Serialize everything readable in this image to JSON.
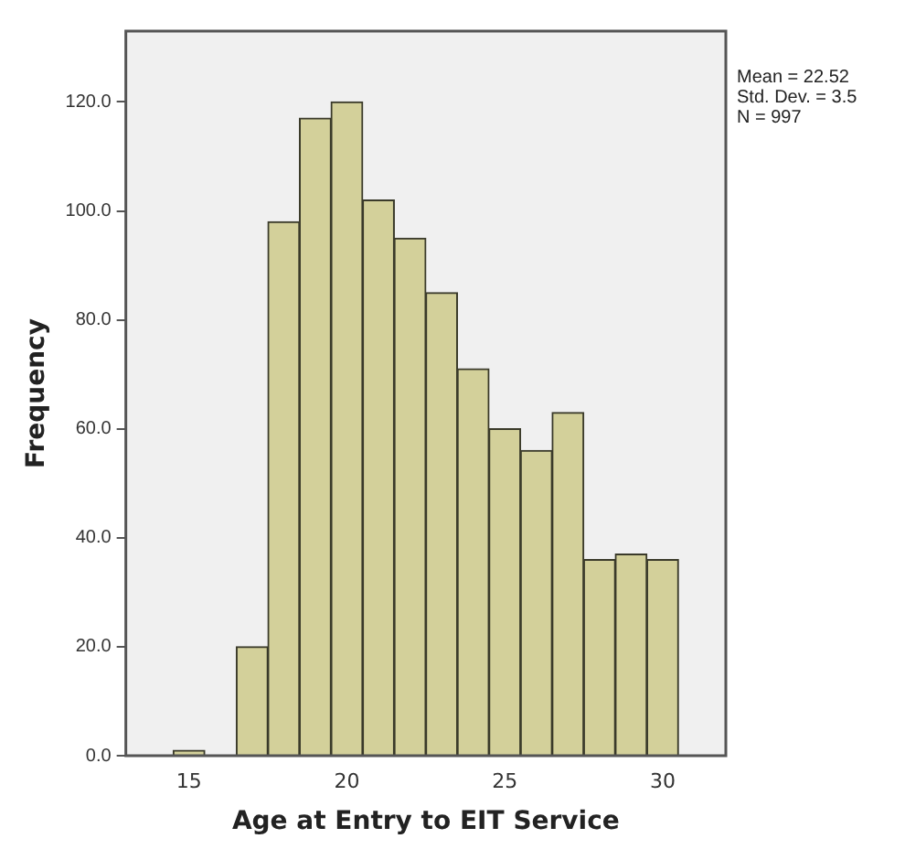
{
  "chart_data": {
    "type": "histogram",
    "xlabel": "Age at Entry to EIT Service",
    "ylabel": "Frequency",
    "bins": [
      14.5,
      15.5,
      16.5,
      17.5,
      18.5,
      19.5,
      20.5,
      21.5,
      22.5,
      23.5,
      24.5,
      25.5,
      26.5,
      27.5,
      28.5,
      29.5,
      30.5
    ],
    "values": [
      1,
      0,
      20,
      98,
      117,
      120,
      102,
      95,
      85,
      71,
      60,
      56,
      63,
      36,
      37,
      36
    ],
    "color": "#d3d09a",
    "xlim": [
      13,
      32
    ],
    "xticks": [
      15,
      20,
      25,
      30
    ],
    "ylim": [
      0,
      133
    ],
    "yticks": [
      {
        "value": 0,
        "label": "0.0"
      },
      {
        "value": 20,
        "label": "20.0"
      },
      {
        "value": 40,
        "label": "40.0"
      },
      {
        "value": 60,
        "label": "60.0"
      },
      {
        "value": 80,
        "label": "80.0"
      },
      {
        "value": 100,
        "label": "100.0"
      },
      {
        "value": 120,
        "label": "120.0"
      }
    ],
    "grid": false,
    "legend": false,
    "annotations": [
      "Mean = 22.52",
      "Std. Dev. = 3.5",
      "N = 997"
    ]
  }
}
